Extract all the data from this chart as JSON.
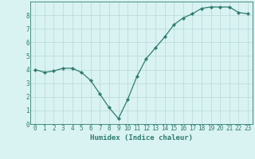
{
  "x": [
    0,
    1,
    2,
    3,
    4,
    5,
    6,
    7,
    8,
    9,
    10,
    11,
    12,
    13,
    14,
    15,
    16,
    17,
    18,
    19,
    20,
    21,
    22,
    23
  ],
  "y": [
    4.0,
    3.8,
    3.9,
    4.1,
    4.1,
    3.8,
    3.2,
    2.2,
    1.2,
    0.4,
    1.8,
    3.5,
    4.8,
    5.6,
    6.4,
    7.3,
    7.8,
    8.1,
    8.5,
    8.6,
    8.6,
    8.6,
    8.2,
    8.1
  ],
  "line_color": "#2e7d6e",
  "marker": "D",
  "marker_size": 2.2,
  "bg_color": "#d9f2f2",
  "grid_color": "#b8d8d8",
  "xlabel": "Humidex (Indice chaleur)",
  "xlim": [
    -0.5,
    23.5
  ],
  "ylim": [
    0,
    9
  ],
  "yticks": [
    0,
    1,
    2,
    3,
    4,
    5,
    6,
    7,
    8
  ],
  "xticks": [
    0,
    1,
    2,
    3,
    4,
    5,
    6,
    7,
    8,
    9,
    10,
    11,
    12,
    13,
    14,
    15,
    16,
    17,
    18,
    19,
    20,
    21,
    22,
    23
  ],
  "tick_color": "#2e7d6e",
  "label_fontsize": 6.5,
  "tick_fontsize": 5.5
}
